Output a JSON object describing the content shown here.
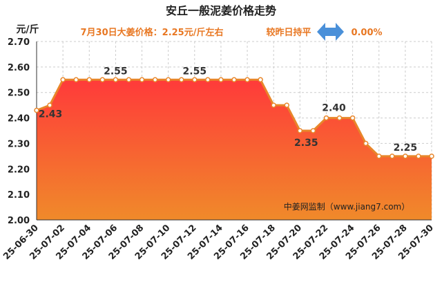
{
  "chart_data": {
    "type": "area",
    "title": "安丘一般泥姜价格走势",
    "subtitle": "7月30日大姜价格：2.25元/斤左右",
    "change_text": "较昨日持平",
    "change_value": "0.00%",
    "ylabel": "元/斤",
    "ylim": [
      2.0,
      2.7
    ],
    "yticks": [
      "2.00",
      "2.10",
      "2.20",
      "2.30",
      "2.40",
      "2.50",
      "2.60",
      "2.70"
    ],
    "grid": true,
    "watermark": "中姜网监制（www.jiang7.com）",
    "x": [
      "25-06-30",
      "25-07-01",
      "25-07-02",
      "25-07-03",
      "25-07-04",
      "25-07-05",
      "25-07-06",
      "25-07-07",
      "25-07-08",
      "25-07-09",
      "25-07-10",
      "25-07-11",
      "25-07-12",
      "25-07-13",
      "25-07-14",
      "25-07-15",
      "25-07-16",
      "25-07-17",
      "25-07-18",
      "25-07-19",
      "25-07-20",
      "25-07-21",
      "25-07-22",
      "25-07-23",
      "25-07-24",
      "25-07-25",
      "25-07-26",
      "25-07-27",
      "25-07-28",
      "25-07-29",
      "25-07-30"
    ],
    "xtick_labels": [
      "25-06-30",
      "25-07-02",
      "25-07-04",
      "25-07-06",
      "25-07-08",
      "25-07-10",
      "25-07-12",
      "25-07-14",
      "25-07-16",
      "25-07-18",
      "25-07-20",
      "25-07-22",
      "25-07-24",
      "25-07-26",
      "25-07-28",
      "25-07-30"
    ],
    "values": [
      2.43,
      2.45,
      2.55,
      2.55,
      2.55,
      2.55,
      2.55,
      2.55,
      2.55,
      2.55,
      2.55,
      2.55,
      2.55,
      2.55,
      2.55,
      2.55,
      2.55,
      2.55,
      2.45,
      2.45,
      2.35,
      2.35,
      2.4,
      2.4,
      2.4,
      2.3,
      2.25,
      2.25,
      2.25,
      2.25,
      2.25
    ],
    "data_labels": [
      {
        "index": 0,
        "text": "2.43"
      },
      {
        "index": 6,
        "text": "2.55"
      },
      {
        "index": 12,
        "text": "2.55"
      },
      {
        "index": 20,
        "text": "2.35"
      },
      {
        "index": 23,
        "text": "2.40"
      },
      {
        "index": 28,
        "text": "2.25"
      }
    ],
    "colors": {
      "title": "#222222",
      "subtitle": "#e87722",
      "line": "#e8862a",
      "area_top": "#ff3a3a",
      "area_bottom": "#f08a2a",
      "arrow": "#4a90d9",
      "axis_text": "#222222",
      "grid": "#cccccc"
    }
  }
}
